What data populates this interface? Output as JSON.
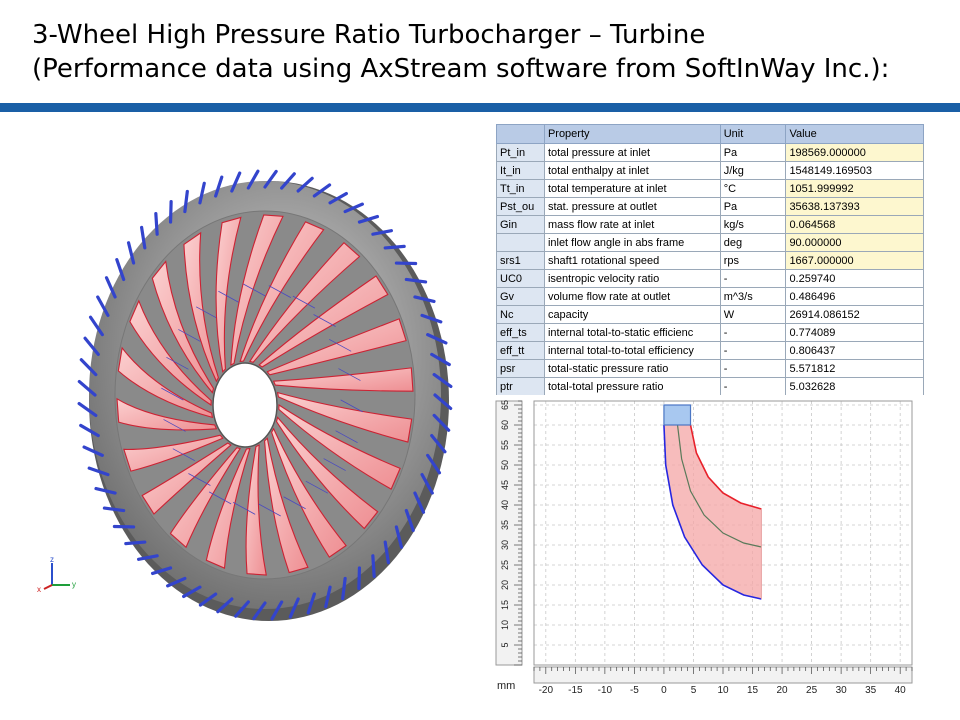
{
  "slide": {
    "title_line1": "3-Wheel High Pressure Ratio Turbocharger – Turbine",
    "title_line2": "(Performance data using AxStream software from SoftInWay Inc.):"
  },
  "colors": {
    "title_bar": "#1a5fa6",
    "blade_fill": "#f4a6a6",
    "blade_edge": "#cc2233",
    "shroud_teeth": "#3344cc",
    "hub": "#8c8c8c"
  },
  "wheel_view": {
    "axis_labels": {
      "z": "z",
      "x": "x",
      "y": "y"
    }
  },
  "property_table": {
    "headers": {
      "id": "",
      "property": "Property",
      "unit": "Unit",
      "value": "Value"
    },
    "rows": [
      {
        "id": "Pt_in",
        "property": "total pressure at inlet",
        "unit": "Pa",
        "value": "198569.000000",
        "highlight": true
      },
      {
        "id": "It_in",
        "property": "total enthalpy at inlet",
        "unit": "J/kg",
        "value": "1548149.169503",
        "highlight": false
      },
      {
        "id": "Tt_in",
        "property": "total temperature at inlet",
        "unit": "°C",
        "value": "1051.999992",
        "highlight": true
      },
      {
        "id": "Pst_ou",
        "property": "stat. pressure at outlet",
        "unit": "Pa",
        "value": "35638.137393",
        "highlight": true
      },
      {
        "id": "Gin",
        "property": "mass flow rate at inlet",
        "unit": "kg/s",
        "value": "0.064568",
        "highlight": true
      },
      {
        "id": "",
        "property": "inlet flow angle in abs frame",
        "unit": "deg",
        "value": "90.000000",
        "highlight": true
      },
      {
        "id": "srs1",
        "property": "shaft1 rotational speed",
        "unit": "rps",
        "value": "1667.000000",
        "highlight": true
      },
      {
        "id": "UC0",
        "property": "isentropic velocity ratio",
        "unit": "-",
        "value": "0.259740",
        "highlight": false
      },
      {
        "id": "Gv",
        "property": "volume flow rate at outlet",
        "unit": "m^3/s",
        "value": "0.486496",
        "highlight": false
      },
      {
        "id": "Nc",
        "property": "capacity",
        "unit": "W",
        "value": "26914.086152",
        "highlight": false
      },
      {
        "id": "eff_ts",
        "property": "internal total-to-static efficienc",
        "unit": "-",
        "value": "0.774089",
        "highlight": false
      },
      {
        "id": "eff_tt",
        "property": "internal total-to-total efficiency",
        "unit": "-",
        "value": "0.806437",
        "highlight": false
      },
      {
        "id": "psr",
        "property": "total-static pressure ratio",
        "unit": "-",
        "value": "5.571812",
        "highlight": false
      },
      {
        "id": "ptr",
        "property": "total-total pressure ratio",
        "unit": "-",
        "value": "5.032628",
        "highlight": false
      }
    ]
  },
  "meridional_plot": {
    "unit_label": "mm",
    "xlim": [
      -22,
      42
    ],
    "ylim": [
      0,
      66
    ],
    "x_ticks": [
      -20,
      -15,
      -10,
      -5,
      0,
      5,
      10,
      15,
      20,
      25,
      30,
      35,
      40
    ],
    "y_ticks": [
      5,
      10,
      15,
      20,
      25,
      30,
      35,
      40,
      45,
      50,
      55,
      60,
      65
    ],
    "inlet_box": {
      "x": [
        0,
        4.5
      ],
      "y": [
        60,
        65
      ]
    },
    "shroud_curve": [
      [
        4.5,
        60
      ],
      [
        5.5,
        53
      ],
      [
        7.5,
        47
      ],
      [
        10,
        43
      ],
      [
        13,
        40.5
      ],
      [
        16.5,
        39
      ]
    ],
    "hub_curve": [
      [
        0,
        60
      ],
      [
        0.3,
        50
      ],
      [
        1.5,
        40
      ],
      [
        3.5,
        32
      ],
      [
        6.5,
        25
      ],
      [
        10,
        20
      ],
      [
        13.5,
        17.5
      ],
      [
        16.5,
        16.5
      ]
    ],
    "mean_curve": [
      [
        2.3,
        60
      ],
      [
        3,
        51.5
      ],
      [
        4.5,
        43.5
      ],
      [
        6.8,
        37.5
      ],
      [
        10,
        33
      ],
      [
        13.5,
        30.5
      ],
      [
        16.5,
        29.5
      ]
    ],
    "trailing_edge_x": 16.5
  }
}
